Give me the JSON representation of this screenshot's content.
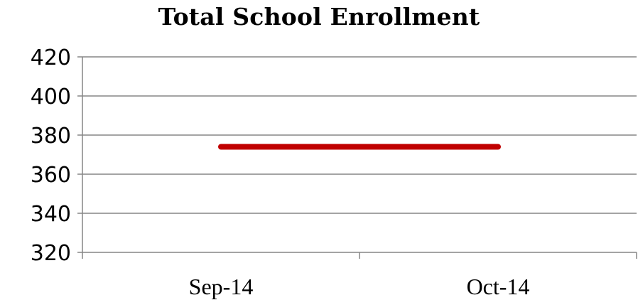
{
  "chart_data": {
    "type": "line",
    "title": "Total School Enrollment",
    "xlabel": "",
    "ylabel": "",
    "categories": [
      "Sep-14",
      "Oct-14"
    ],
    "series": [
      {
        "values": [
          374,
          374
        ],
        "color": "#c00000"
      }
    ],
    "ylim": [
      320,
      420
    ],
    "yticks": [
      320,
      340,
      360,
      380,
      400,
      420
    ],
    "grid": true,
    "legend": "none",
    "colors": {
      "gridline": "#868686",
      "axis": "#868686"
    }
  }
}
